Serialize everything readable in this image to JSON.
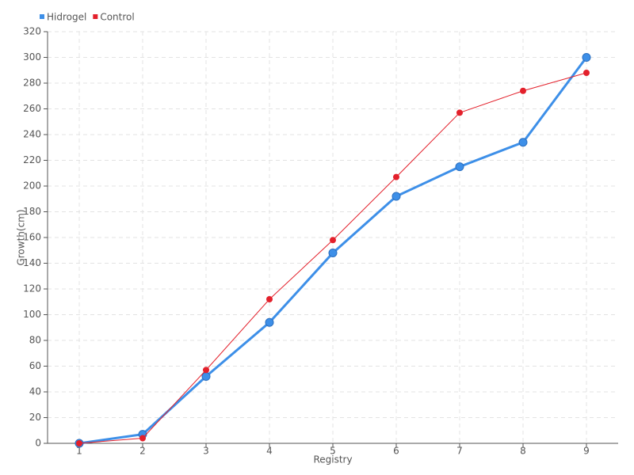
{
  "chart_data": {
    "type": "line",
    "x_label": "Registry",
    "y_label": "Growth(cm)",
    "categories": [
      "1",
      "2",
      "3",
      "4",
      "5",
      "6",
      "7",
      "8",
      "9"
    ],
    "series": [
      {
        "name": "Hidrogel",
        "color": "#3d8fe8",
        "values": [
          0,
          7,
          52,
          94,
          148,
          192,
          215,
          234,
          300
        ]
      },
      {
        "name": "Control",
        "color": "#e3202b",
        "values": [
          0,
          4,
          57,
          112,
          158,
          207,
          257,
          274,
          288
        ]
      }
    ],
    "ylim": [
      0,
      320
    ],
    "yticks": [
      0,
      20,
      40,
      60,
      80,
      100,
      120,
      140,
      160,
      180,
      200,
      220,
      240,
      260,
      280,
      300,
      320
    ],
    "grid": true,
    "legend": "top-left"
  }
}
